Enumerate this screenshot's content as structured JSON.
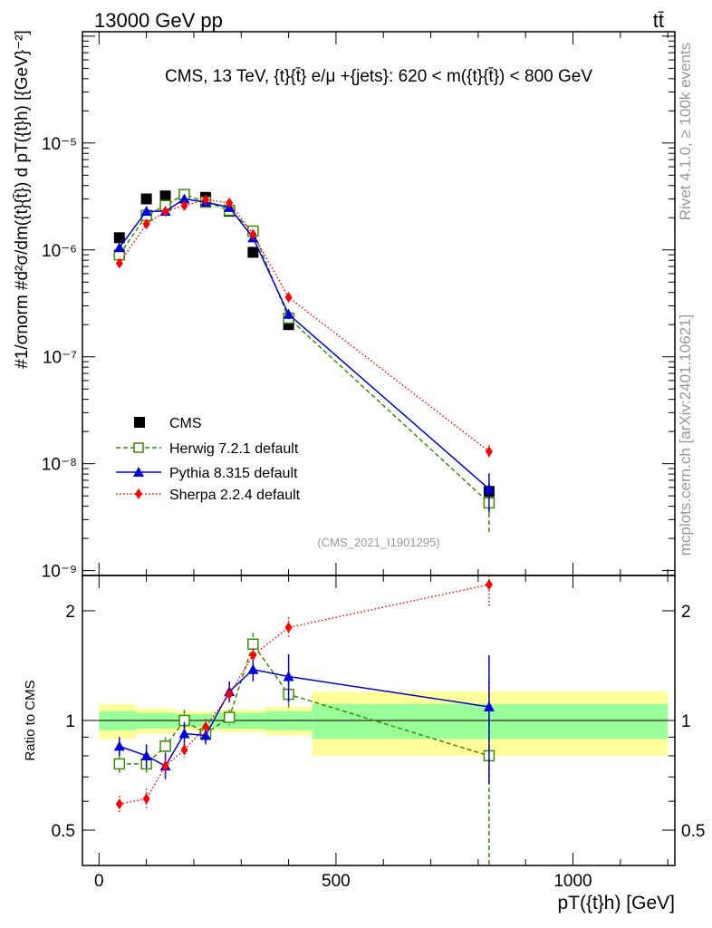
{
  "header": {
    "process": "13000 GeV pp",
    "final_state": "tt̄",
    "rivet_version": "Rivet 4.1.0, ≥ 100k events",
    "website": "mcplots.cern.ch [arXiv:2401.10621]"
  },
  "colors": {
    "cms": "#000000",
    "herwig": "#3a8c00",
    "pythia": "#0000d8",
    "sherpa": "#ff0000",
    "band_inner": "#99ff99",
    "band_outer": "#ffff99"
  },
  "chart_data": [
    {
      "type": "scatter",
      "panel": "main",
      "title": "CMS, 13 TeV, {t}{t̄} e/μ +{jets}: 620 < m({t}{t̄}) < 800 GeV",
      "ylabel": "#1/σnorm #d²σ/dm({t}{t̄}) d pT({t}h) [{GeV}⁻²]",
      "xlabel": "pT({t}h) [GeV]",
      "yscale": "log",
      "ylim": [
        9e-10,
        0.00011
      ],
      "xlim": [
        -35,
        1215
      ],
      "yticks": [
        "10⁻⁹",
        "10⁻⁸",
        "10⁻⁷",
        "10⁻⁶",
        "10⁻⁵"
      ],
      "analysis_id": "(CMS_2021_I1901295)",
      "legend": [
        "CMS",
        "Herwig 7.2.1 default",
        "Pythia 8.315 default",
        "Sherpa 2.2.4 default"
      ],
      "bins": [
        [
          0,
          80
        ],
        [
          80,
          120
        ],
        [
          120,
          160
        ],
        [
          160,
          200
        ],
        [
          200,
          250
        ],
        [
          250,
          300
        ],
        [
          300,
          350
        ],
        [
          350,
          450
        ],
        [
          450,
          1200
        ]
      ],
      "x": [
        43,
        100,
        140,
        180,
        225,
        275,
        325,
        400,
        823
      ],
      "series": [
        {
          "name": "CMS",
          "values": [
            1.3e-06,
            3e-06,
            3.2e-06,
            3.3e-06,
            3.1e-06,
            2.3e-06,
            9.5e-07,
            2e-07,
            5.5e-09
          ]
        },
        {
          "name": "Herwig 7.2.1 default",
          "values": [
            9e-07,
            2.1e-06,
            2.6e-06,
            3.3e-06,
            2.8e-06,
            2.35e-06,
            1.5e-06,
            2.3e-07,
            4.3e-09
          ],
          "errors": [
            0.05,
            0.05,
            0.05,
            0.05,
            0.05,
            0.05,
            0.06,
            0.1,
            0.5
          ]
        },
        {
          "name": "Pythia 8.315 default",
          "values": [
            1.05e-06,
            2.3e-06,
            2.3e-06,
            3e-06,
            2.8e-06,
            2.5e-06,
            1.3e-06,
            2.5e-07,
            5.8e-09
          ],
          "errors": [
            0.05,
            0.05,
            0.05,
            0.05,
            0.05,
            0.05,
            0.06,
            0.1,
            0.4
          ]
        },
        {
          "name": "Sherpa 2.2.4 default",
          "values": [
            7.5e-07,
            1.75e-06,
            2.3e-06,
            2.6e-06,
            2.95e-06,
            2.75e-06,
            1.4e-06,
            3.6e-07,
            1.3e-08
          ],
          "errors": [
            0.05,
            0.05,
            0.05,
            0.05,
            0.05,
            0.05,
            0.06,
            0.1,
            0.15
          ]
        }
      ]
    },
    {
      "type": "scatter",
      "panel": "ratio",
      "ylabel": "Ratio to CMS",
      "xlabel": "pT({t}h) [GeV]",
      "yscale": "log",
      "ylim": [
        0.4,
        2.5
      ],
      "xlim": [
        -35,
        1215
      ],
      "yticks": [
        "0.5",
        "1",
        "2"
      ],
      "xticks": [
        "0",
        "500",
        "1000"
      ],
      "xtick_values": [
        0,
        500,
        1000
      ],
      "band": {
        "bins": [
          [
            0,
            80
          ],
          [
            80,
            160
          ],
          [
            160,
            250
          ],
          [
            250,
            350
          ],
          [
            350,
            450
          ],
          [
            450,
            1200
          ]
        ],
        "stat": [
          0.06,
          0.05,
          0.04,
          0.05,
          0.06,
          0.11
        ],
        "total": [
          0.11,
          0.08,
          0.06,
          0.07,
          0.09,
          0.2
        ]
      },
      "x": [
        43,
        100,
        140,
        180,
        225,
        275,
        325,
        400,
        823
      ],
      "series": [
        {
          "name": "Herwig 7.2.1 default",
          "values": [
            0.76,
            0.76,
            0.85,
            1.0,
            0.92,
            1.02,
            1.62,
            1.18,
            0.8
          ],
          "errors": [
            0.05,
            0.05,
            0.05,
            0.07,
            0.05,
            0.05,
            0.12,
            0.1,
            0.5
          ]
        },
        {
          "name": "Pythia 8.315 default",
          "values": [
            0.85,
            0.8,
            0.75,
            0.92,
            0.91,
            1.2,
            1.38,
            1.32,
            1.09
          ],
          "errors": [
            0.05,
            0.06,
            0.06,
            0.07,
            0.05,
            0.08,
            0.1,
            0.2,
            0.42
          ]
        },
        {
          "name": "Sherpa 2.2.4 default",
          "values": [
            0.59,
            0.61,
            0.75,
            0.83,
            0.96,
            1.18,
            1.51,
            1.8,
            2.36
          ],
          "errors": [
            0.03,
            0.04,
            0.05,
            0.04,
            0.05,
            0.06,
            0.07,
            0.12,
            0.3
          ]
        }
      ]
    }
  ]
}
